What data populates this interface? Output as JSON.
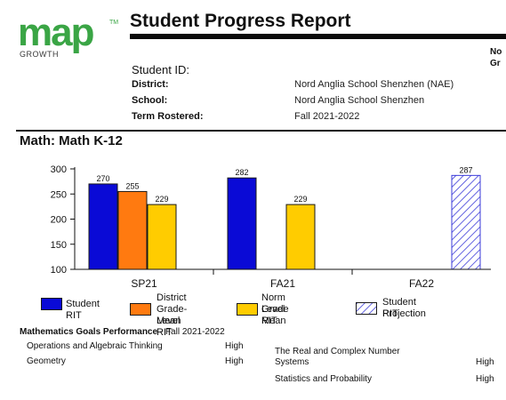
{
  "header": {
    "logo_text": "map",
    "logo_tm": "TM",
    "logo_sub": "GROWTH",
    "title": "Student Progress Report",
    "cut_off_1": "No",
    "cut_off_2": "Gr"
  },
  "student": {
    "id_label": "Student ID:",
    "district_label": "District:",
    "district_value": "Nord Anglia School Shenzhen (NAE)",
    "school_label": "School:",
    "school_value": "Nord Anglia School Shenzhen",
    "term_label": "Term Rostered:",
    "term_value": "Fall 2021-2022"
  },
  "section": {
    "title": "Math: Math K-12"
  },
  "colors": {
    "student_rit": "#0a0ad6",
    "district_mean": "#ff7a10",
    "norm_mean": "#ffcc00",
    "projection": "#3b3bd9",
    "logo_green": "#3aa545"
  },
  "chart_data": {
    "type": "bar",
    "title": "",
    "xlabel": "",
    "ylabel": "",
    "ylim": [
      100,
      300
    ],
    "yticks": [
      100,
      150,
      200,
      250,
      300
    ],
    "categories": [
      "SP21",
      "FA21",
      "FA22"
    ],
    "series": [
      {
        "name": "Student RIT",
        "values": [
          270,
          282,
          null
        ]
      },
      {
        "name": "District Grade-Level Mean RIT",
        "values": [
          255,
          null,
          null
        ]
      },
      {
        "name": "Norm Grade Level Mean RIT",
        "values": [
          229,
          229,
          null
        ]
      },
      {
        "name": "Student RIT Projection",
        "values": [
          null,
          null,
          287
        ]
      }
    ],
    "legend": {
      "placement": "bottom",
      "items": [
        {
          "lines": [
            "Student RIT"
          ],
          "icon": "solid-swatch"
        },
        {
          "lines": [
            "District",
            "Grade-Level",
            "Mean RIT"
          ],
          "icon": "solid-swatch"
        },
        {
          "lines": [
            "Norm Grade",
            "Level Mean",
            "RIT"
          ],
          "icon": "solid-swatch"
        },
        {
          "lines": [
            "Student RIT",
            "Projection"
          ],
          "icon": "hatched-swatch"
        }
      ]
    },
    "grid": false
  },
  "goals": {
    "heading_bold": "Mathematics Goals Performance",
    "heading_rest": " - Fall 2021-2022",
    "left": [
      {
        "name": "Operations and Algebraic Thinking",
        "value": "High"
      },
      {
        "name": "Geometry",
        "value": "High"
      }
    ],
    "right": [
      {
        "name_line1": "The Real and Complex Number",
        "name_line2": "Systems",
        "value": "High"
      },
      {
        "name_line1": "Statistics and Probability",
        "name_line2": "",
        "value": "High"
      }
    ]
  }
}
